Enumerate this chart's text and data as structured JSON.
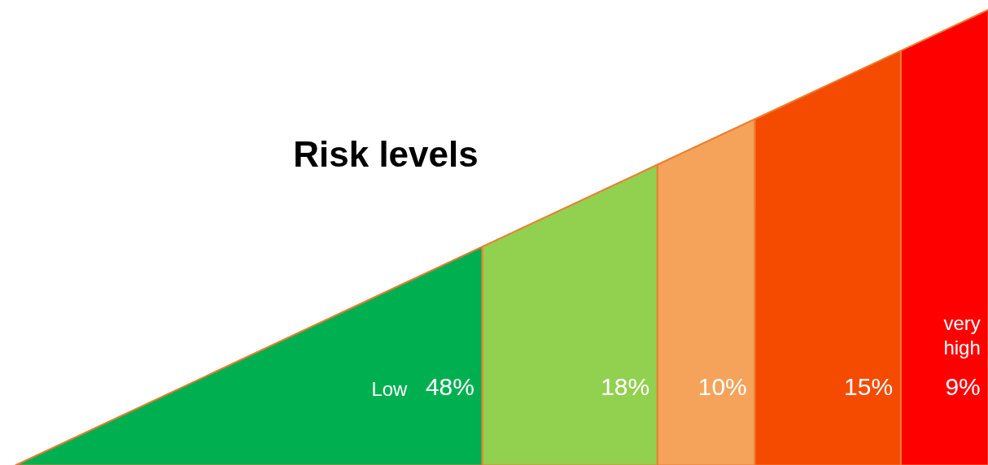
{
  "chart_data": {
    "type": "other",
    "title": "Risk levels",
    "categories": [
      "Low",
      null,
      null,
      null,
      "very high"
    ],
    "values": [
      48,
      18,
      10,
      15,
      9
    ],
    "value_labels": [
      "48%",
      "18%",
      "10%",
      "15%",
      "9%"
    ],
    "colors": [
      "#00b050",
      "#92d050",
      "#f5a35a",
      "#f44b00",
      "#ff0000"
    ]
  }
}
